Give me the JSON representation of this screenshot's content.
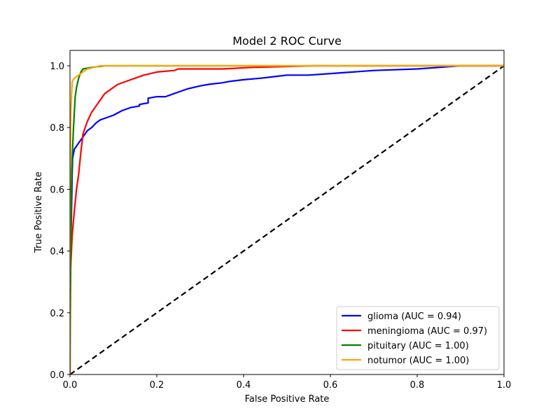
{
  "chart_data": {
    "type": "line",
    "title": "Model 2 ROC Curve",
    "xlabel": "False Positive Rate",
    "ylabel": "True Positive Rate",
    "xlim": [
      0.0,
      1.0
    ],
    "ylim": [
      0.0,
      1.05
    ],
    "xticks": [
      0.0,
      0.2,
      0.4,
      0.6,
      0.8,
      1.0
    ],
    "yticks": [
      0.0,
      0.2,
      0.4,
      0.6,
      0.8,
      1.0
    ],
    "xtick_labels": [
      "0.0",
      "0.2",
      "0.4",
      "0.6",
      "0.8",
      "1.0"
    ],
    "ytick_labels": [
      "0.0",
      "0.2",
      "0.4",
      "0.6",
      "0.8",
      "1.0"
    ],
    "grid": false,
    "legend_position": "lower-right",
    "series": [
      {
        "name": "glioma (AUC = 0.94)",
        "color": "#0000ff",
        "points": [
          [
            0,
            0
          ],
          [
            0,
            0.3
          ],
          [
            0.003,
            0.5
          ],
          [
            0.005,
            0.65
          ],
          [
            0.006,
            0.7
          ],
          [
            0.01,
            0.73
          ],
          [
            0.02,
            0.75
          ],
          [
            0.03,
            0.77
          ],
          [
            0.04,
            0.79
          ],
          [
            0.05,
            0.8
          ],
          [
            0.06,
            0.815
          ],
          [
            0.07,
            0.825
          ],
          [
            0.08,
            0.83
          ],
          [
            0.1,
            0.84
          ],
          [
            0.12,
            0.855
          ],
          [
            0.14,
            0.865
          ],
          [
            0.16,
            0.87
          ],
          [
            0.16,
            0.875
          ],
          [
            0.18,
            0.88
          ],
          [
            0.18,
            0.895
          ],
          [
            0.2,
            0.9
          ],
          [
            0.22,
            0.9
          ],
          [
            0.24,
            0.91
          ],
          [
            0.25,
            0.915
          ],
          [
            0.27,
            0.925
          ],
          [
            0.3,
            0.935
          ],
          [
            0.32,
            0.94
          ],
          [
            0.35,
            0.945
          ],
          [
            0.37,
            0.95
          ],
          [
            0.4,
            0.955
          ],
          [
            0.44,
            0.96
          ],
          [
            0.47,
            0.965
          ],
          [
            0.5,
            0.97
          ],
          [
            0.55,
            0.97
          ],
          [
            0.6,
            0.975
          ],
          [
            0.7,
            0.985
          ],
          [
            0.8,
            0.99
          ],
          [
            0.85,
            0.995
          ],
          [
            0.9,
            1.0
          ],
          [
            1.0,
            1.0
          ]
        ]
      },
      {
        "name": "meningioma (AUC = 0.97)",
        "color": "#ff0000",
        "points": [
          [
            0,
            0
          ],
          [
            0,
            0.3
          ],
          [
            0.005,
            0.45
          ],
          [
            0.008,
            0.5
          ],
          [
            0.01,
            0.53
          ],
          [
            0.015,
            0.6
          ],
          [
            0.02,
            0.65
          ],
          [
            0.025,
            0.72
          ],
          [
            0.03,
            0.78
          ],
          [
            0.04,
            0.82
          ],
          [
            0.05,
            0.85
          ],
          [
            0.06,
            0.87
          ],
          [
            0.07,
            0.89
          ],
          [
            0.08,
            0.91
          ],
          [
            0.09,
            0.92
          ],
          [
            0.1,
            0.93
          ],
          [
            0.11,
            0.94
          ],
          [
            0.13,
            0.95
          ],
          [
            0.15,
            0.96
          ],
          [
            0.17,
            0.97
          ],
          [
            0.2,
            0.98
          ],
          [
            0.24,
            0.985
          ],
          [
            0.25,
            0.99
          ],
          [
            0.3,
            0.99
          ],
          [
            0.35,
            0.99
          ],
          [
            0.42,
            0.995
          ],
          [
            0.56,
            1.0
          ],
          [
            1.0,
            1.0
          ]
        ]
      },
      {
        "name": "pituitary (AUC = 1.00)",
        "color": "#008000",
        "points": [
          [
            0,
            0
          ],
          [
            0,
            0.05
          ],
          [
            0.003,
            0.6
          ],
          [
            0.005,
            0.7
          ],
          [
            0.008,
            0.8
          ],
          [
            0.01,
            0.85
          ],
          [
            0.012,
            0.9
          ],
          [
            0.015,
            0.93
          ],
          [
            0.02,
            0.96
          ],
          [
            0.025,
            0.98
          ],
          [
            0.03,
            0.99
          ],
          [
            0.05,
            0.995
          ],
          [
            0.08,
            1.0
          ],
          [
            1.0,
            1.0
          ]
        ]
      },
      {
        "name": "notumor (AUC = 1.00)",
        "color": "#ffa500",
        "points": [
          [
            0,
            0
          ],
          [
            0,
            0.6
          ],
          [
            0.002,
            0.85
          ],
          [
            0.005,
            0.95
          ],
          [
            0.01,
            0.96
          ],
          [
            0.02,
            0.97
          ],
          [
            0.03,
            0.98
          ],
          [
            0.04,
            0.99
          ],
          [
            0.07,
            1.0
          ],
          [
            1.0,
            1.0
          ]
        ]
      }
    ],
    "reference_line": {
      "points": [
        [
          0,
          0
        ],
        [
          1,
          1
        ]
      ],
      "color": "#000000",
      "style": "dashed"
    }
  }
}
